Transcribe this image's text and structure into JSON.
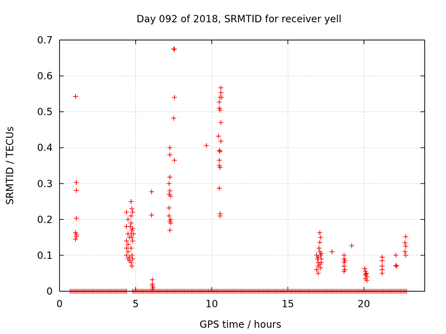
{
  "chart_data": {
    "type": "scatter",
    "title": "Day 092 of 2018, SRMTID for receiver yell",
    "xlabel": "GPS time / hours",
    "ylabel": "SRMTID / TECUs",
    "xlim": [
      0,
      24
    ],
    "ylim": [
      0,
      0.7
    ],
    "xticks": [
      0,
      5,
      10,
      15,
      20
    ],
    "xtick_labels": [
      "0",
      "5",
      "10",
      "15",
      "20"
    ],
    "yticks": [
      0,
      0.1,
      0.2,
      0.3,
      0.4,
      0.5,
      0.6,
      0.7
    ],
    "ytick_labels": [
      "0",
      "0.1",
      "0.2",
      "0.3",
      "0.4",
      "0.5",
      "0.6",
      "0.7"
    ],
    "grid": true,
    "marker": "plus",
    "color": "#ff0000",
    "series": [
      {
        "name": "SRMTID",
        "points": [
          [
            1.05,
            0.543
          ],
          [
            1.1,
            0.303
          ],
          [
            1.1,
            0.281
          ],
          [
            1.1,
            0.203
          ],
          [
            1.05,
            0.163
          ],
          [
            1.1,
            0.158
          ],
          [
            1.1,
            0.153
          ],
          [
            1.05,
            0.145
          ],
          [
            4.4,
            0.22
          ],
          [
            4.5,
            0.2
          ],
          [
            4.4,
            0.18
          ],
          [
            4.5,
            0.16
          ],
          [
            4.4,
            0.14
          ],
          [
            4.5,
            0.13
          ],
          [
            4.4,
            0.12
          ],
          [
            4.5,
            0.11
          ],
          [
            4.4,
            0.1
          ],
          [
            4.5,
            0.09
          ],
          [
            4.6,
            0.085
          ],
          [
            4.6,
            0.095
          ],
          [
            4.7,
            0.25
          ],
          [
            4.75,
            0.23
          ],
          [
            4.7,
            0.21
          ],
          [
            4.8,
            0.22
          ],
          [
            4.7,
            0.19
          ],
          [
            4.75,
            0.17
          ],
          [
            4.8,
            0.175
          ],
          [
            4.7,
            0.16
          ],
          [
            4.75,
            0.15
          ],
          [
            4.8,
            0.14
          ],
          [
            4.7,
            0.12
          ],
          [
            4.75,
            0.1
          ],
          [
            4.8,
            0.09
          ],
          [
            4.7,
            0.08
          ],
          [
            4.75,
            0.07
          ],
          [
            4.65,
            0.18
          ],
          [
            4.85,
            0.16
          ],
          [
            4.6,
            0.15
          ],
          [
            6.05,
            0.277
          ],
          [
            6.05,
            0.212
          ],
          [
            6.1,
            0.032
          ],
          [
            6.1,
            0.02
          ],
          [
            6.1,
            0.015
          ],
          [
            6.15,
            0.01
          ],
          [
            6.1,
            0.005
          ],
          [
            7.5,
            0.675
          ],
          [
            7.55,
            0.674
          ],
          [
            7.55,
            0.54
          ],
          [
            7.5,
            0.482
          ],
          [
            7.25,
            0.4
          ],
          [
            7.25,
            0.38
          ],
          [
            7.55,
            0.365
          ],
          [
            7.25,
            0.318
          ],
          [
            7.2,
            0.3
          ],
          [
            7.25,
            0.28
          ],
          [
            7.2,
            0.27
          ],
          [
            7.3,
            0.265
          ],
          [
            7.2,
            0.232
          ],
          [
            7.2,
            0.21
          ],
          [
            7.3,
            0.2
          ],
          [
            7.25,
            0.195
          ],
          [
            7.3,
            0.19
          ],
          [
            7.25,
            0.17
          ],
          [
            9.65,
            0.406
          ],
          [
            10.6,
            0.567
          ],
          [
            10.6,
            0.553
          ],
          [
            10.55,
            0.54
          ],
          [
            10.65,
            0.54
          ],
          [
            10.5,
            0.527
          ],
          [
            10.5,
            0.51
          ],
          [
            10.55,
            0.505
          ],
          [
            10.6,
            0.47
          ],
          [
            10.45,
            0.432
          ],
          [
            10.6,
            0.418
          ],
          [
            10.5,
            0.392
          ],
          [
            10.55,
            0.39
          ],
          [
            10.5,
            0.365
          ],
          [
            10.5,
            0.35
          ],
          [
            10.55,
            0.345
          ],
          [
            10.5,
            0.287
          ],
          [
            10.55,
            0.216
          ],
          [
            10.55,
            0.21
          ],
          [
            16.9,
            0.1
          ],
          [
            16.95,
            0.09
          ],
          [
            17.0,
            0.08
          ],
          [
            17.0,
            0.07
          ],
          [
            16.9,
            0.06
          ],
          [
            17.0,
            0.05
          ],
          [
            17.1,
            0.11
          ],
          [
            17.1,
            0.163
          ],
          [
            17.1,
            0.136
          ],
          [
            17.15,
            0.15
          ],
          [
            17.05,
            0.12
          ],
          [
            17.15,
            0.1
          ],
          [
            17.2,
            0.09
          ],
          [
            17.2,
            0.08
          ],
          [
            17.1,
            0.075
          ],
          [
            17.15,
            0.065
          ],
          [
            17.0,
            0.095
          ],
          [
            17.2,
            0.105
          ],
          [
            17.9,
            0.11
          ],
          [
            18.7,
            0.1
          ],
          [
            18.7,
            0.09
          ],
          [
            18.7,
            0.08
          ],
          [
            18.75,
            0.085
          ],
          [
            18.7,
            0.07
          ],
          [
            18.75,
            0.06
          ],
          [
            18.7,
            0.055
          ],
          [
            19.2,
            0.127
          ],
          [
            20.05,
            0.063
          ],
          [
            20.1,
            0.055
          ],
          [
            20.15,
            0.05
          ],
          [
            20.1,
            0.045
          ],
          [
            20.2,
            0.04
          ],
          [
            20.1,
            0.035
          ],
          [
            20.2,
            0.03
          ],
          [
            20.15,
            0.048
          ],
          [
            21.2,
            0.095
          ],
          [
            21.2,
            0.085
          ],
          [
            21.2,
            0.07
          ],
          [
            21.2,
            0.06
          ],
          [
            21.2,
            0.05
          ],
          [
            22.1,
            0.1
          ],
          [
            22.1,
            0.072
          ],
          [
            22.15,
            0.07
          ],
          [
            22.75,
            0.152
          ],
          [
            22.7,
            0.135
          ],
          [
            22.75,
            0.125
          ],
          [
            22.7,
            0.11
          ],
          [
            22.75,
            0.1
          ]
        ],
        "zero_range_segments": [
          [
            0.7,
            4.4
          ],
          [
            4.8,
            17.0
          ],
          [
            17.1,
            22.8
          ]
        ],
        "zero_spacing_hours": 0.1
      }
    ]
  }
}
